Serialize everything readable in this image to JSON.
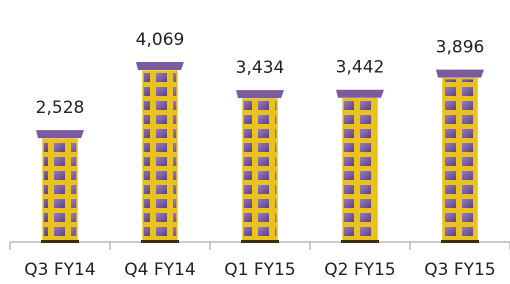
{
  "chart_data": {
    "type": "bar",
    "categories": [
      "Q3 FY14",
      "Q4 FY14",
      "Q1 FY15",
      "Q2 FY15",
      "Q3 FY15"
    ],
    "values": [
      2528,
      4069,
      3434,
      3442,
      3896
    ],
    "value_labels": [
      "2,528",
      "4,069",
      "3,434",
      "3,442",
      "3,896"
    ],
    "color": "#7b5a9e"
  }
}
